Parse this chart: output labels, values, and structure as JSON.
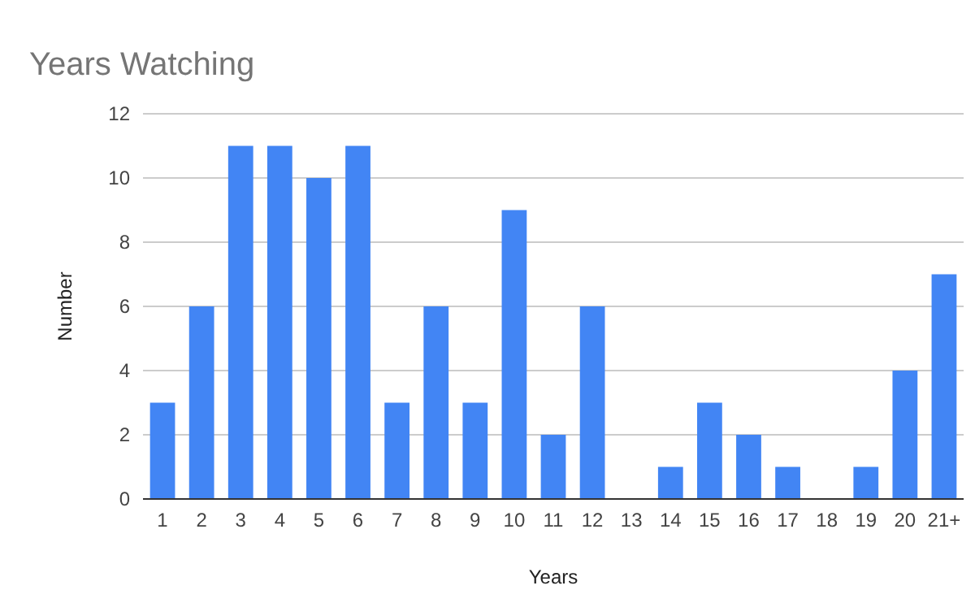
{
  "chart_data": {
    "type": "bar",
    "title": "Years Watching",
    "xlabel": "Years",
    "ylabel": "Number",
    "categories": [
      "1",
      "2",
      "3",
      "4",
      "5",
      "6",
      "7",
      "8",
      "9",
      "10",
      "11",
      "12",
      "13",
      "14",
      "15",
      "16",
      "17",
      "18",
      "19",
      "20",
      "21+"
    ],
    "values": [
      3,
      6,
      11,
      11,
      10,
      11,
      3,
      6,
      3,
      9,
      2,
      6,
      0,
      1,
      3,
      2,
      1,
      0,
      1,
      4,
      7
    ],
    "color": "#4285f4",
    "ylim": [
      0,
      12
    ],
    "yticks": [
      0,
      2,
      4,
      6,
      8,
      10,
      12
    ],
    "grid": "y"
  }
}
